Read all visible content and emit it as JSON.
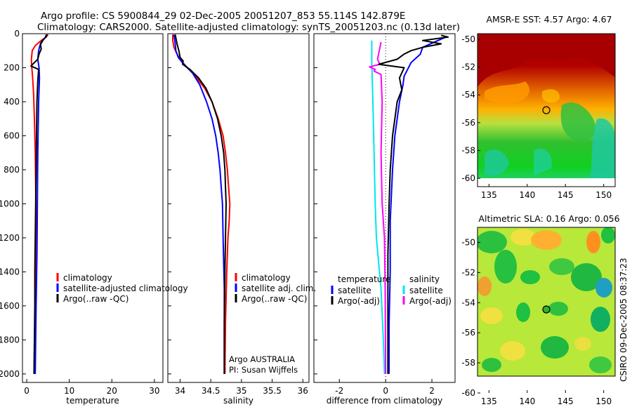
{
  "figure": {
    "title_line1": "Argo profile: CS 5900844_29 02-Dec-2005 20051207_853 55.114S 142.879E",
    "title_line2": "Climatology: CARS2000. Satellite-adjusted climatology: synTS_20051203.nc (0.13d later)",
    "side_label": "CSIRO 09-Dec-2005 08:37:23",
    "credit_line1": "Argo AUSTRALIA",
    "credit_line2": "PI: Susan Wijffels"
  },
  "colors": {
    "red": "#ff0000",
    "blue": "#0000ff",
    "black": "#000000",
    "cyan": "#00e5ee",
    "magenta": "#ff00ff"
  },
  "chart_data": [
    {
      "type": "line",
      "xlabel": "temperature",
      "ylim": [
        0,
        2050
      ],
      "y_reversed": true,
      "xlim": [
        -1,
        32
      ],
      "xticks": [
        0,
        10,
        20,
        30
      ],
      "yticks": [
        0,
        200,
        400,
        600,
        800,
        1000,
        1200,
        1400,
        1600,
        1800,
        2000
      ],
      "legend": [
        "climatology",
        "satellite-adjusted climatology",
        "Argo(..raw -QC)"
      ],
      "series": [
        {
          "color": "red",
          "points": [
            [
              5.0,
              5
            ],
            [
              4.6,
              20
            ],
            [
              3.4,
              40
            ],
            [
              2.0,
              70
            ],
            [
              1.3,
              100
            ],
            [
              1.1,
              150
            ],
            [
              1.2,
              200
            ],
            [
              1.4,
              260
            ],
            [
              1.6,
              350
            ],
            [
              1.8,
              500
            ],
            [
              2.0,
              700
            ],
            [
              2.1,
              900
            ],
            [
              2.2,
              1100
            ],
            [
              2.2,
              1400
            ],
            [
              2.0,
              1700
            ],
            [
              1.9,
              2000
            ]
          ]
        },
        {
          "color": "blue",
          "points": [
            [
              4.6,
              5
            ],
            [
              4.4,
              20
            ],
            [
              3.8,
              40
            ],
            [
              3.1,
              70
            ],
            [
              2.8,
              100
            ],
            [
              2.6,
              150
            ],
            [
              2.9,
              200
            ],
            [
              3.0,
              260
            ],
            [
              2.8,
              400
            ],
            [
              2.6,
              700
            ],
            [
              2.5,
              1000
            ],
            [
              2.4,
              1300
            ],
            [
              2.2,
              1600
            ],
            [
              2.0,
              2000
            ]
          ]
        },
        {
          "color": "black",
          "points": [
            [
              4.8,
              5
            ],
            [
              4.5,
              20
            ],
            [
              3.7,
              40
            ],
            [
              3.2,
              60
            ],
            [
              3.4,
              90
            ],
            [
              2.9,
              120
            ],
            [
              2.6,
              150
            ],
            [
              1.0,
              190
            ],
            [
              2.8,
              210
            ],
            [
              2.6,
              280
            ],
            [
              2.4,
              400
            ],
            [
              2.3,
              600
            ],
            [
              2.2,
              800
            ],
            [
              2.1,
              1000
            ],
            [
              2.0,
              1200
            ],
            [
              1.9,
              1400
            ],
            [
              1.9,
              1600
            ],
            [
              1.8,
              1800
            ],
            [
              1.7,
              2000
            ]
          ]
        }
      ]
    },
    {
      "type": "line",
      "xlabel": "salinity",
      "ylim": [
        0,
        2050
      ],
      "y_reversed": true,
      "xlim": [
        33.8,
        36.1
      ],
      "xticks": [
        34,
        34.5,
        35,
        35.5,
        36
      ],
      "legend": [
        "climatology",
        "satellite adj. clim.",
        "Argo(..raw -QC)"
      ],
      "series": [
        {
          "color": "red",
          "points": [
            [
              33.88,
              5
            ],
            [
              33.88,
              40
            ],
            [
              33.9,
              80
            ],
            [
              33.95,
              120
            ],
            [
              34.02,
              160
            ],
            [
              34.12,
              200
            ],
            [
              34.25,
              250
            ],
            [
              34.4,
              320
            ],
            [
              34.52,
              400
            ],
            [
              34.62,
              500
            ],
            [
              34.7,
              600
            ],
            [
              34.74,
              700
            ],
            [
              34.77,
              800
            ],
            [
              34.79,
              900
            ],
            [
              34.81,
              1000
            ],
            [
              34.8,
              1100
            ],
            [
              34.78,
              1200
            ],
            [
              34.76,
              1400
            ],
            [
              34.74,
              1700
            ],
            [
              34.73,
              2000
            ]
          ]
        },
        {
          "color": "blue",
          "points": [
            [
              33.9,
              5
            ],
            [
              33.92,
              60
            ],
            [
              33.93,
              100
            ],
            [
              33.97,
              140
            ],
            [
              34.06,
              180
            ],
            [
              34.2,
              230
            ],
            [
              34.32,
              300
            ],
            [
              34.43,
              400
            ],
            [
              34.52,
              500
            ],
            [
              34.58,
              600
            ],
            [
              34.62,
              700
            ],
            [
              34.65,
              800
            ],
            [
              34.67,
              900
            ],
            [
              34.69,
              1000
            ],
            [
              34.7,
              1200
            ],
            [
              34.72,
              1500
            ],
            [
              34.72,
              2000
            ]
          ]
        },
        {
          "color": "black",
          "points": [
            [
              33.92,
              5
            ],
            [
              33.95,
              60
            ],
            [
              33.98,
              100
            ],
            [
              34.0,
              140
            ],
            [
              34.05,
              160
            ],
            [
              34.04,
              180
            ],
            [
              34.16,
              210
            ],
            [
              34.3,
              260
            ],
            [
              34.42,
              320
            ],
            [
              34.52,
              400
            ],
            [
              34.61,
              500
            ],
            [
              34.67,
              600
            ],
            [
              34.71,
              700
            ],
            [
              34.73,
              800
            ],
            [
              34.74,
              900
            ],
            [
              34.75,
              1000
            ],
            [
              34.74,
              1200
            ],
            [
              34.73,
              1400
            ],
            [
              34.72,
              1700
            ],
            [
              34.72,
              2000
            ]
          ]
        }
      ]
    },
    {
      "type": "line",
      "xlabel": "difference from climatology",
      "ylim": [
        0,
        2050
      ],
      "y_reversed": true,
      "xlim": [
        -3.1,
        3.0
      ],
      "xticks": [
        -2,
        0,
        2
      ],
      "legend_left_heading": "temperature",
      "legend_right_heading": "salinity",
      "legend": [
        "satellite",
        "Argo(-adj)",
        "satellite",
        "Argo(-adj)"
      ],
      "series": [
        {
          "color": "cyan",
          "points": [
            [
              -0.6,
              40
            ],
            [
              -0.6,
              160
            ],
            [
              -0.55,
              400
            ],
            [
              -0.5,
              700
            ],
            [
              -0.45,
              1000
            ],
            [
              -0.4,
              1200
            ],
            [
              -0.2,
              1500
            ],
            [
              -0.1,
              1800
            ],
            [
              -0.05,
              2000
            ]
          ]
        },
        {
          "color": "magenta",
          "points": [
            [
              -0.2,
              50
            ],
            [
              -0.35,
              150
            ],
            [
              -0.25,
              180
            ],
            [
              -0.7,
              195
            ],
            [
              -0.45,
              210
            ],
            [
              -0.5,
              220
            ],
            [
              -0.2,
              240
            ],
            [
              -0.15,
              400
            ],
            [
              -0.2,
              700
            ],
            [
              -0.15,
              1000
            ],
            [
              -0.05,
              1200
            ],
            [
              -0.02,
              1500
            ],
            [
              0.0,
              2000
            ]
          ]
        },
        {
          "color": "blue",
          "points": [
            [
              2.6,
              20
            ],
            [
              1.6,
              80
            ],
            [
              1.5,
              120
            ],
            [
              1.1,
              170
            ],
            [
              0.8,
              250
            ],
            [
              0.75,
              300
            ],
            [
              0.6,
              400
            ],
            [
              0.4,
              600
            ],
            [
              0.3,
              800
            ],
            [
              0.2,
              1100
            ],
            [
              0.2,
              1400
            ],
            [
              0.15,
              1700
            ],
            [
              0.15,
              2000
            ]
          ]
        },
        {
          "color": "black",
          "points": [
            [
              2.4,
              10
            ],
            [
              2.7,
              20
            ],
            [
              1.6,
              40
            ],
            [
              2.4,
              60
            ],
            [
              1.6,
              80
            ],
            [
              1.1,
              100
            ],
            [
              0.8,
              120
            ],
            [
              0.5,
              150
            ],
            [
              -0.3,
              180
            ],
            [
              0.8,
              200
            ],
            [
              0.6,
              260
            ],
            [
              0.7,
              330
            ],
            [
              0.5,
              400
            ],
            [
              0.3,
              600
            ],
            [
              0.2,
              800
            ],
            [
              0.15,
              1000
            ],
            [
              0.1,
              1300
            ],
            [
              0.1,
              1600
            ],
            [
              0.1,
              2000
            ]
          ]
        }
      ]
    },
    {
      "type": "heatmap",
      "title": "AMSR-E SST: 4.57 Argo: 4.67",
      "xlim": [
        133.5,
        151.5
      ],
      "ylim": [
        -60.6,
        -49.6
      ],
      "xticks": [
        135,
        140,
        145,
        150
      ],
      "yticks": [
        -50,
        -52,
        -54,
        -56,
        -58,
        -60
      ],
      "marker": {
        "lon": 142.879,
        "lat": -55.114
      }
    },
    {
      "type": "heatmap",
      "title": "Altimetric SLA: 0.16 Argo: 0.056",
      "xlim": [
        133.5,
        151.5
      ],
      "ylim": [
        -60.0,
        -49.0
      ],
      "xticks": [
        135,
        140,
        145,
        150
      ],
      "yticks": [
        -50,
        -52,
        -54,
        -56,
        -58,
        -60
      ],
      "marker": {
        "lon": 142.879,
        "lat": -55.114
      }
    }
  ]
}
